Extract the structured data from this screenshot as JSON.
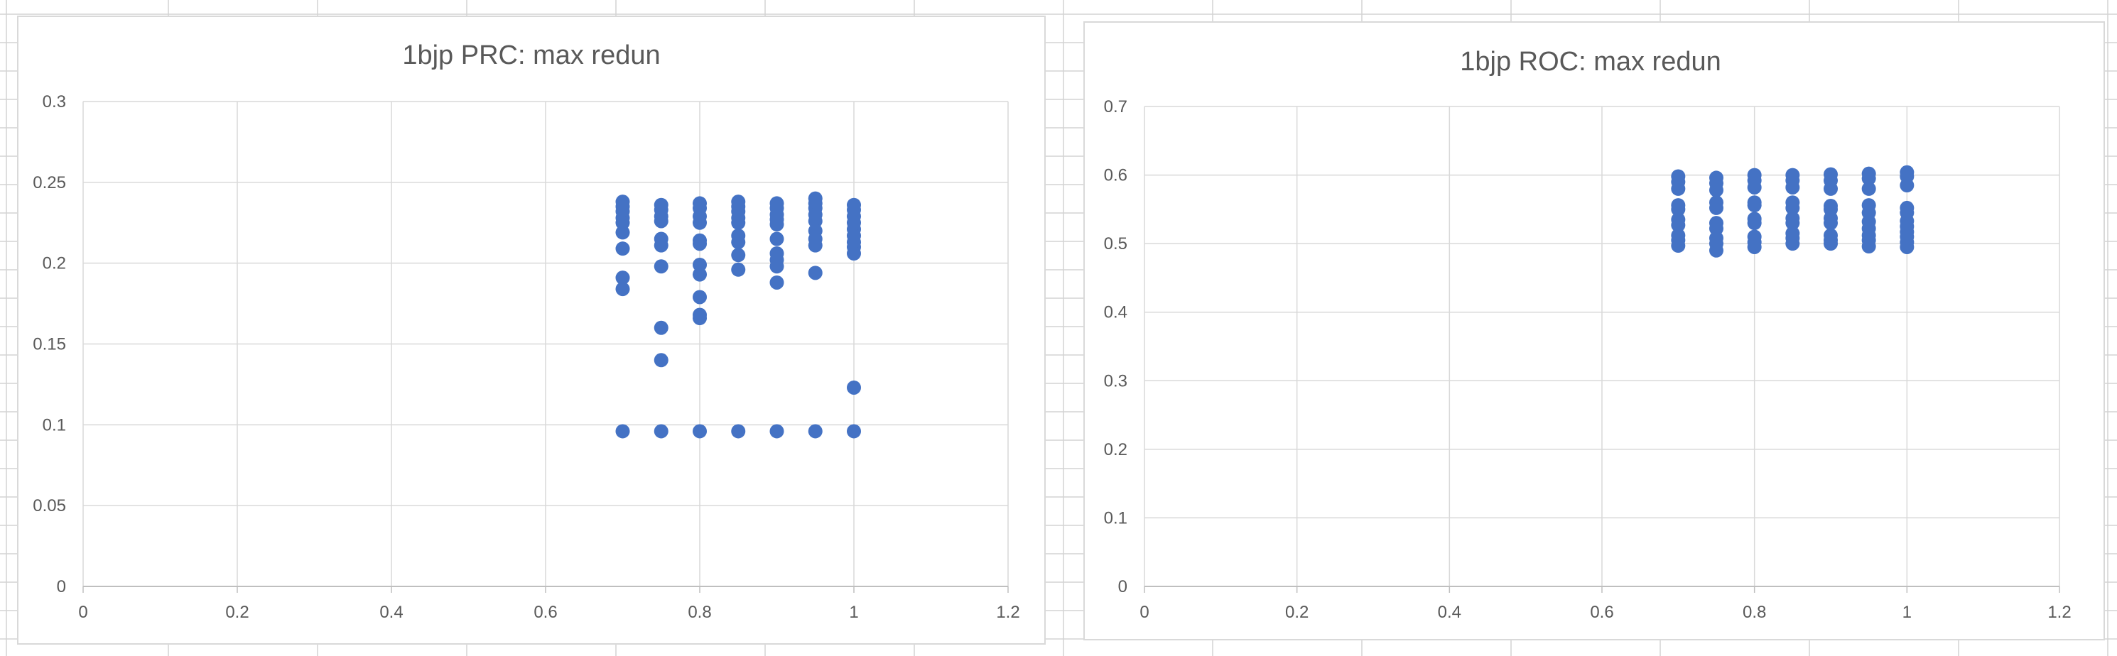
{
  "sheet": {
    "gridline_color": "#d4d4d4",
    "background": "#ffffff"
  },
  "chart_data": [
    {
      "type": "scatter",
      "title": "1bjp PRC: max redun",
      "xlabel": "",
      "ylabel": "",
      "xlim": [
        0,
        1.2
      ],
      "ylim": [
        0,
        0.3
      ],
      "x_ticks": [
        "0",
        "0.2",
        "0.4",
        "0.6",
        "0.8",
        "1",
        "1.2"
      ],
      "y_ticks": [
        "0",
        "0.05",
        "0.1",
        "0.15",
        "0.2",
        "0.25",
        "0.3"
      ],
      "grid": true,
      "legend": "none",
      "marker_color": "#4472c4",
      "gridline_color": "#d9d9d9",
      "series": [
        {
          "points": [
            [
              0.7,
              0.238
            ],
            [
              0.7,
              0.235
            ],
            [
              0.7,
              0.232
            ],
            [
              0.7,
              0.228
            ],
            [
              0.7,
              0.225
            ],
            [
              0.7,
              0.219
            ],
            [
              0.7,
              0.209
            ],
            [
              0.7,
              0.191
            ],
            [
              0.7,
              0.184
            ],
            [
              0.7,
              0.096
            ],
            [
              0.75,
              0.236
            ],
            [
              0.75,
              0.233
            ],
            [
              0.75,
              0.229
            ],
            [
              0.75,
              0.226
            ],
            [
              0.75,
              0.215
            ],
            [
              0.75,
              0.211
            ],
            [
              0.75,
              0.198
            ],
            [
              0.75,
              0.16
            ],
            [
              0.75,
              0.14
            ],
            [
              0.75,
              0.096
            ],
            [
              0.8,
              0.237
            ],
            [
              0.8,
              0.234
            ],
            [
              0.8,
              0.229
            ],
            [
              0.8,
              0.225
            ],
            [
              0.8,
              0.214
            ],
            [
              0.8,
              0.212
            ],
            [
              0.8,
              0.199
            ],
            [
              0.8,
              0.193
            ],
            [
              0.8,
              0.179
            ],
            [
              0.8,
              0.168
            ],
            [
              0.8,
              0.166
            ],
            [
              0.8,
              0.096
            ],
            [
              0.85,
              0.238
            ],
            [
              0.85,
              0.235
            ],
            [
              0.85,
              0.232
            ],
            [
              0.85,
              0.228
            ],
            [
              0.85,
              0.225
            ],
            [
              0.85,
              0.217
            ],
            [
              0.85,
              0.213
            ],
            [
              0.85,
              0.205
            ],
            [
              0.85,
              0.196
            ],
            [
              0.85,
              0.096
            ],
            [
              0.9,
              0.237
            ],
            [
              0.9,
              0.234
            ],
            [
              0.9,
              0.23
            ],
            [
              0.9,
              0.227
            ],
            [
              0.9,
              0.224
            ],
            [
              0.9,
              0.215
            ],
            [
              0.9,
              0.206
            ],
            [
              0.9,
              0.202
            ],
            [
              0.9,
              0.198
            ],
            [
              0.9,
              0.188
            ],
            [
              0.9,
              0.096
            ],
            [
              0.95,
              0.24
            ],
            [
              0.95,
              0.237
            ],
            [
              0.95,
              0.234
            ],
            [
              0.95,
              0.23
            ],
            [
              0.95,
              0.226
            ],
            [
              0.95,
              0.22
            ],
            [
              0.95,
              0.215
            ],
            [
              0.95,
              0.211
            ],
            [
              0.95,
              0.194
            ],
            [
              0.95,
              0.096
            ],
            [
              1.0,
              0.236
            ],
            [
              1.0,
              0.233
            ],
            [
              1.0,
              0.229
            ],
            [
              1.0,
              0.225
            ],
            [
              1.0,
              0.221
            ],
            [
              1.0,
              0.217
            ],
            [
              1.0,
              0.213
            ],
            [
              1.0,
              0.21
            ],
            [
              1.0,
              0.206
            ],
            [
              1.0,
              0.123
            ],
            [
              1.0,
              0.096
            ]
          ]
        }
      ]
    },
    {
      "type": "scatter",
      "title": "1bjp ROC: max redun",
      "xlabel": "",
      "ylabel": "",
      "xlim": [
        0,
        1.2
      ],
      "ylim": [
        0,
        0.7
      ],
      "x_ticks": [
        "0",
        "0.2",
        "0.4",
        "0.6",
        "0.8",
        "1",
        "1.2"
      ],
      "y_ticks": [
        "0",
        "0.1",
        "0.2",
        "0.3",
        "0.4",
        "0.5",
        "0.6",
        "0.7"
      ],
      "grid": true,
      "legend": "none",
      "marker_color": "#4472c4",
      "gridline_color": "#d9d9d9",
      "series": [
        {
          "points": [
            [
              0.7,
              0.598
            ],
            [
              0.7,
              0.59
            ],
            [
              0.7,
              0.58
            ],
            [
              0.7,
              0.556
            ],
            [
              0.7,
              0.55
            ],
            [
              0.7,
              0.535
            ],
            [
              0.7,
              0.527
            ],
            [
              0.7,
              0.512
            ],
            [
              0.7,
              0.505
            ],
            [
              0.7,
              0.497
            ],
            [
              0.75,
              0.596
            ],
            [
              0.75,
              0.588
            ],
            [
              0.75,
              0.578
            ],
            [
              0.75,
              0.56
            ],
            [
              0.75,
              0.552
            ],
            [
              0.75,
              0.53
            ],
            [
              0.75,
              0.522
            ],
            [
              0.75,
              0.508
            ],
            [
              0.75,
              0.5
            ],
            [
              0.75,
              0.49
            ],
            [
              0.8,
              0.6
            ],
            [
              0.8,
              0.592
            ],
            [
              0.8,
              0.582
            ],
            [
              0.8,
              0.56
            ],
            [
              0.8,
              0.556
            ],
            [
              0.8,
              0.536
            ],
            [
              0.8,
              0.53
            ],
            [
              0.8,
              0.51
            ],
            [
              0.8,
              0.502
            ],
            [
              0.8,
              0.495
            ],
            [
              0.85,
              0.6
            ],
            [
              0.85,
              0.592
            ],
            [
              0.85,
              0.582
            ],
            [
              0.85,
              0.56
            ],
            [
              0.85,
              0.552
            ],
            [
              0.85,
              0.537
            ],
            [
              0.85,
              0.53
            ],
            [
              0.85,
              0.515
            ],
            [
              0.85,
              0.508
            ],
            [
              0.85,
              0.5
            ],
            [
              0.9,
              0.601
            ],
            [
              0.9,
              0.592
            ],
            [
              0.9,
              0.58
            ],
            [
              0.9,
              0.555
            ],
            [
              0.9,
              0.55
            ],
            [
              0.9,
              0.537
            ],
            [
              0.9,
              0.53
            ],
            [
              0.9,
              0.512
            ],
            [
              0.9,
              0.505
            ],
            [
              0.9,
              0.5
            ],
            [
              0.95,
              0.602
            ],
            [
              0.95,
              0.595
            ],
            [
              0.95,
              0.58
            ],
            [
              0.95,
              0.556
            ],
            [
              0.95,
              0.545
            ],
            [
              0.95,
              0.532
            ],
            [
              0.95,
              0.522
            ],
            [
              0.95,
              0.512
            ],
            [
              0.95,
              0.505
            ],
            [
              0.95,
              0.496
            ],
            [
              1.0,
              0.604
            ],
            [
              1.0,
              0.598
            ],
            [
              1.0,
              0.585
            ],
            [
              1.0,
              0.552
            ],
            [
              1.0,
              0.545
            ],
            [
              1.0,
              0.533
            ],
            [
              1.0,
              0.525
            ],
            [
              1.0,
              0.517
            ],
            [
              1.0,
              0.51
            ],
            [
              1.0,
              0.502
            ],
            [
              1.0,
              0.495
            ]
          ]
        }
      ]
    }
  ]
}
